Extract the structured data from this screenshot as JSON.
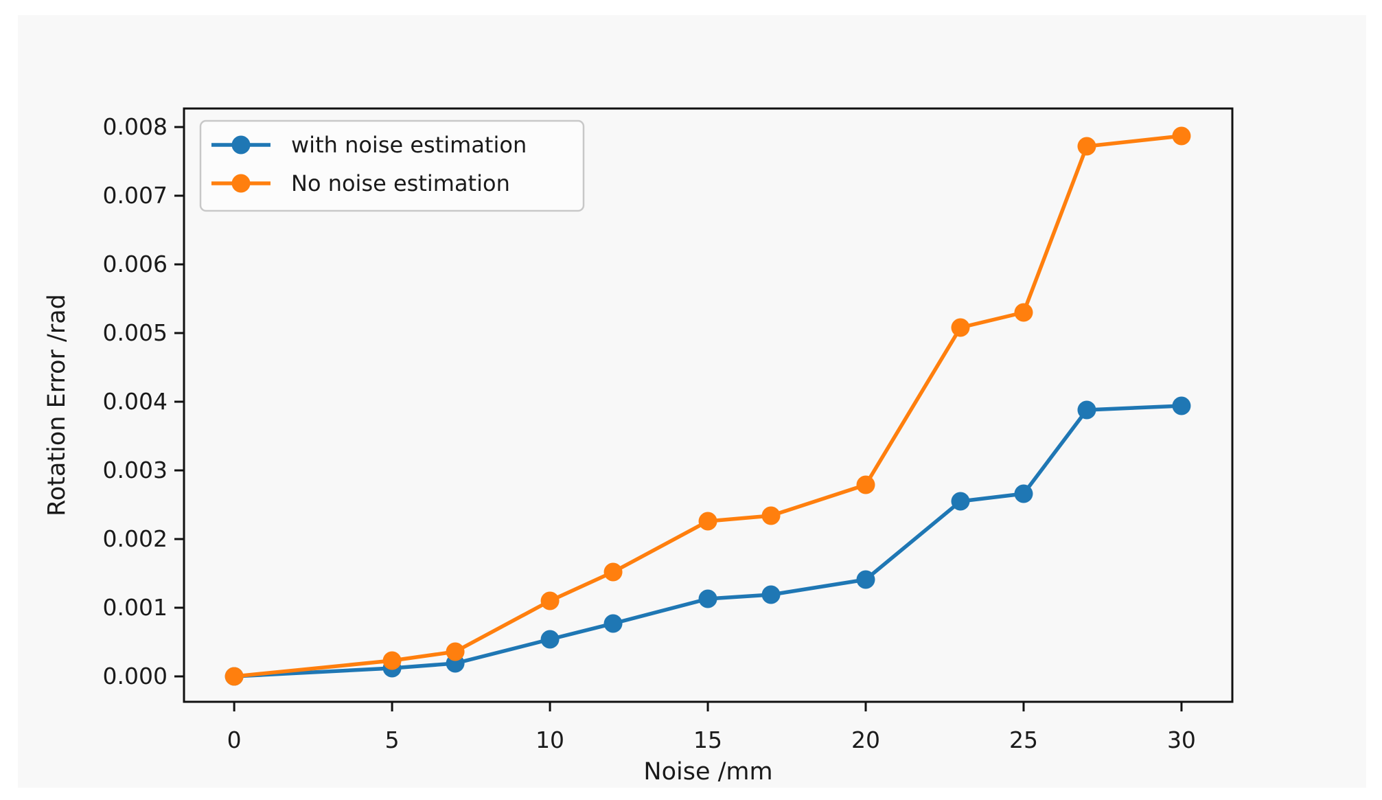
{
  "page": {
    "background": "#ffffff"
  },
  "figure": {
    "background": "#f8f8f8"
  },
  "style": {
    "text_color": "#1a1a1a",
    "spine_color": "#111111",
    "legend_background": "#fcfcfc",
    "legend_border": "#c8c8c8"
  },
  "chart_data": {
    "type": "line",
    "title": "",
    "xlabel": "Noise /mm",
    "ylabel": "Rotation Error /rad",
    "x": [
      0,
      5,
      7,
      10,
      12,
      15,
      17,
      20,
      23,
      25,
      27,
      30
    ],
    "series": [
      {
        "name": "with noise estimation",
        "color": "#1f77b4",
        "marker": "circle",
        "values": [
          0.0,
          0.00012,
          0.00019,
          0.00054,
          0.00077,
          0.00113,
          0.00119,
          0.00141,
          0.00255,
          0.00266,
          0.00388,
          0.00394
        ]
      },
      {
        "name": "No noise estimation",
        "color": "#ff7f0e",
        "marker": "circle",
        "values": [
          0.0,
          0.00023,
          0.00036,
          0.0011,
          0.00152,
          0.00226,
          0.00234,
          0.00279,
          0.00508,
          0.0053,
          0.00772,
          0.00787
        ]
      }
    ],
    "x_ticks": {
      "values": [
        0,
        5,
        10,
        15,
        20,
        25,
        30
      ],
      "labels": [
        "0",
        "5",
        "10",
        "15",
        "20",
        "25",
        "30"
      ]
    },
    "y_ticks": {
      "values": [
        0.0,
        0.001,
        0.002,
        0.003,
        0.004,
        0.005,
        0.006,
        0.007,
        0.008
      ],
      "labels": [
        "0.000",
        "0.001",
        "0.002",
        "0.003",
        "0.004",
        "0.005",
        "0.006",
        "0.007",
        "0.008"
      ]
    },
    "xlim": [
      -1.59,
      31.61
    ],
    "ylim": [
      -0.00037,
      0.00827
    ],
    "grid": false,
    "legend": {
      "position": "upper left",
      "entries": [
        "with noise estimation",
        "No noise estimation"
      ]
    }
  }
}
